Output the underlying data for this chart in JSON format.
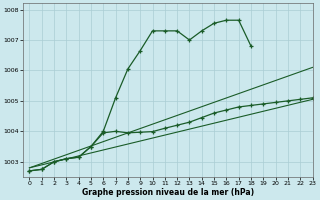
{
  "xlabel": "Graphe pression niveau de la mer (hPa)",
  "background_color": "#cce8ed",
  "grid_color": "#aacdd4",
  "line_color": "#1a5c28",
  "ylim": [
    1002.5,
    1008.2
  ],
  "xlim": [
    -0.5,
    23
  ],
  "yticks": [
    1003,
    1004,
    1005,
    1006,
    1007,
    1008
  ],
  "xticks": [
    0,
    1,
    2,
    3,
    4,
    5,
    6,
    7,
    8,
    9,
    10,
    11,
    12,
    13,
    14,
    15,
    16,
    17,
    18,
    19,
    20,
    21,
    22,
    23
  ],
  "series_data": {
    "line1_x": [
      0,
      1,
      2,
      3,
      4,
      5,
      6,
      7,
      8,
      9,
      10,
      11,
      12,
      13,
      14,
      15,
      16,
      17,
      18
    ],
    "line1_y": [
      1002.7,
      1002.75,
      1003.0,
      1003.1,
      1003.15,
      1003.5,
      1004.0,
      1005.1,
      1006.05,
      1006.65,
      1007.3,
      1007.3,
      1007.3,
      1007.0,
      1007.3,
      1007.55,
      1007.65,
      1007.65,
      1006.8
    ],
    "line2_x": [
      0,
      1,
      2,
      3,
      4,
      5,
      6,
      7,
      8,
      9,
      10,
      11,
      12,
      13,
      14,
      15,
      16,
      17,
      18,
      19,
      20,
      21,
      22,
      23
    ],
    "line2_y": [
      1002.7,
      1002.75,
      1003.0,
      1003.1,
      1003.15,
      1003.5,
      1003.95,
      1004.0,
      1003.95,
      1003.97,
      1003.99,
      1004.1,
      1004.2,
      1004.3,
      1004.45,
      1004.6,
      1004.7,
      1004.8,
      1004.85,
      1004.9,
      1004.95,
      1005.0,
      1005.05,
      1005.1
    ],
    "line3_x": [
      0,
      23
    ],
    "line3_y": [
      1002.8,
      1006.1
    ],
    "line4_x": [
      0,
      23
    ],
    "line4_y": [
      1002.8,
      1005.05
    ]
  }
}
